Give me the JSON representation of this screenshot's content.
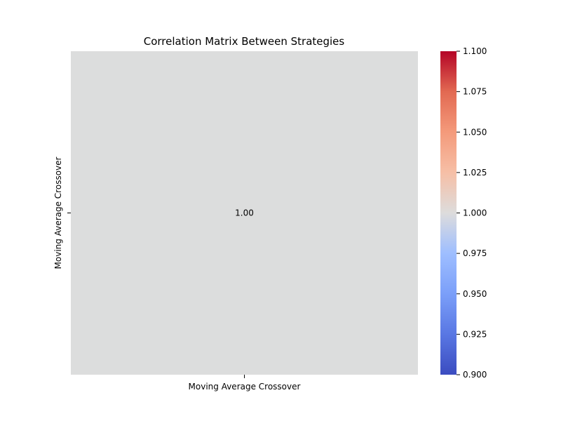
{
  "chart_data": {
    "type": "heatmap",
    "title": "Correlation Matrix Between Strategies",
    "x_categories": [
      "Moving Average Crossover"
    ],
    "y_categories": [
      "Moving Average Crossover"
    ],
    "values": [
      [
        1.0
      ]
    ],
    "cell_labels": [
      [
        "1.00"
      ]
    ],
    "cell_color": "#dcdddd",
    "colorbar": {
      "colormap": "coolwarm",
      "min": 0.9,
      "max": 1.1,
      "ticks": [
        "0.900",
        "0.925",
        "0.950",
        "0.975",
        "1.000",
        "1.025",
        "1.050",
        "1.075",
        "1.100"
      ]
    },
    "grid": false
  }
}
